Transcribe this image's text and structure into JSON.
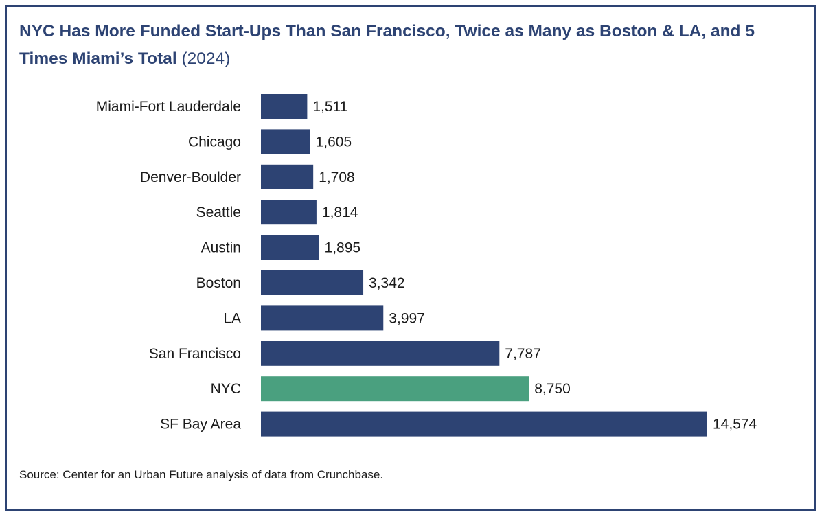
{
  "title": {
    "main": "NYC Has More Funded Start-Ups Than San Francisco, Twice as Many as Boston & LA, and 5 Times Miami’s Total",
    "year": "(2024)"
  },
  "chart_data": {
    "type": "bar",
    "orientation": "horizontal",
    "title": "NYC Has More Funded Start-Ups Than San Francisco, Twice as Many as Boston & LA, and 5 Times Miami’s Total (2024)",
    "categories": [
      "Miami-Fort Lauderdale",
      "Chicago",
      "Denver-Boulder",
      "Seattle",
      "Austin",
      "Boston",
      "LA",
      "San Francisco",
      "NYC",
      "SF Bay Area"
    ],
    "values": [
      1511,
      1605,
      1708,
      1814,
      1895,
      3342,
      3997,
      7787,
      8750,
      14574
    ],
    "value_labels": [
      "1,511",
      "1,605",
      "1,708",
      "1,814",
      "1,895",
      "3,342",
      "3,997",
      "7,787",
      "8,750",
      "14,574"
    ],
    "highlight_category": "NYC",
    "xlim": [
      0,
      14574
    ],
    "xlabel": "",
    "ylabel": "",
    "grid": false,
    "colors": {
      "default": "#2d4373",
      "highlight": "#4aa07f"
    }
  },
  "source": "Source: Center for an Urban Future analysis of data from Crunchbase.",
  "colors": {
    "border": "#2d4373",
    "title": "#2d4373",
    "text": "#1a1a1a"
  }
}
